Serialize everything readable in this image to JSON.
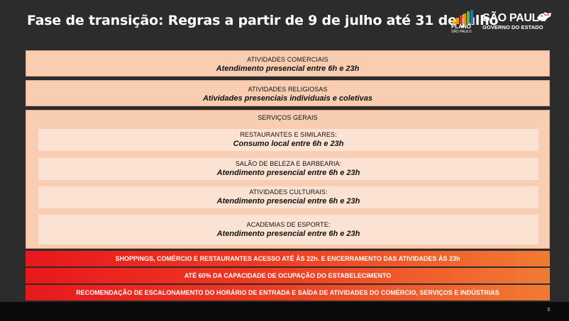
{
  "header": {
    "title": "Fase de transição: Regras a partir de 9 de julho até 31 de julho"
  },
  "logos": {
    "plano_line1": "PLANO",
    "plano_line2": "SÃO PAULO",
    "sp_line1": "SÃO PAULO",
    "sp_line2": "GOVERNO DO ESTADO",
    "bar_colors": [
      "#f6c400",
      "#f29400",
      "#e6332a",
      "#f29400",
      "#6bb43f",
      "#1d71b8"
    ]
  },
  "sections": [
    {
      "title": "ATIVIDADES COMERCIAIS",
      "subtitle": "Atendimento presencial entre 6h e 23h"
    },
    {
      "title": "ATIVIDADES RELIGIOSAS",
      "subtitle": "Atividades presenciais individuais e coletivas"
    }
  ],
  "services": {
    "title": "SERVIÇOS GERAIS",
    "items": [
      {
        "title": "RESTAURANTES E SIMILARES:",
        "subtitle": "Consumo local entre 6h e 23h"
      },
      {
        "title": "SALÃO DE BELEZA E BARBEARIA:",
        "subtitle": "Atendimento presencial entre 6h e 23h"
      },
      {
        "title": "ATIVIDADES CULTURAIS:",
        "subtitle": "Atendimento presencial entre 6h e 23h"
      },
      {
        "title": "ACADEMIAS DE ESPORTE:",
        "subtitle": "Atendimento presencial entre 6h e 23h"
      }
    ]
  },
  "banners": [
    "SHOPPINGS, COMÉRCIO E RESTAURANTES ACESSO ATÉ ÀS 22h. E ENCERRAMENTO DAS ATIVIDADES ÀS 23h",
    "ATÉ 60% DA CAPACIDADE DE OCUPAÇÃO DO ESTABELECIMENTO",
    "RECOMENDAÇÃO DE ESCALONAMENTO DO HORÁRIO DE ENTRADA E SAÍDA DE ATIVIDADES DO COMÉRCIO, SERVIÇOS E INDÚSTRIAS"
  ],
  "page_number": "3"
}
